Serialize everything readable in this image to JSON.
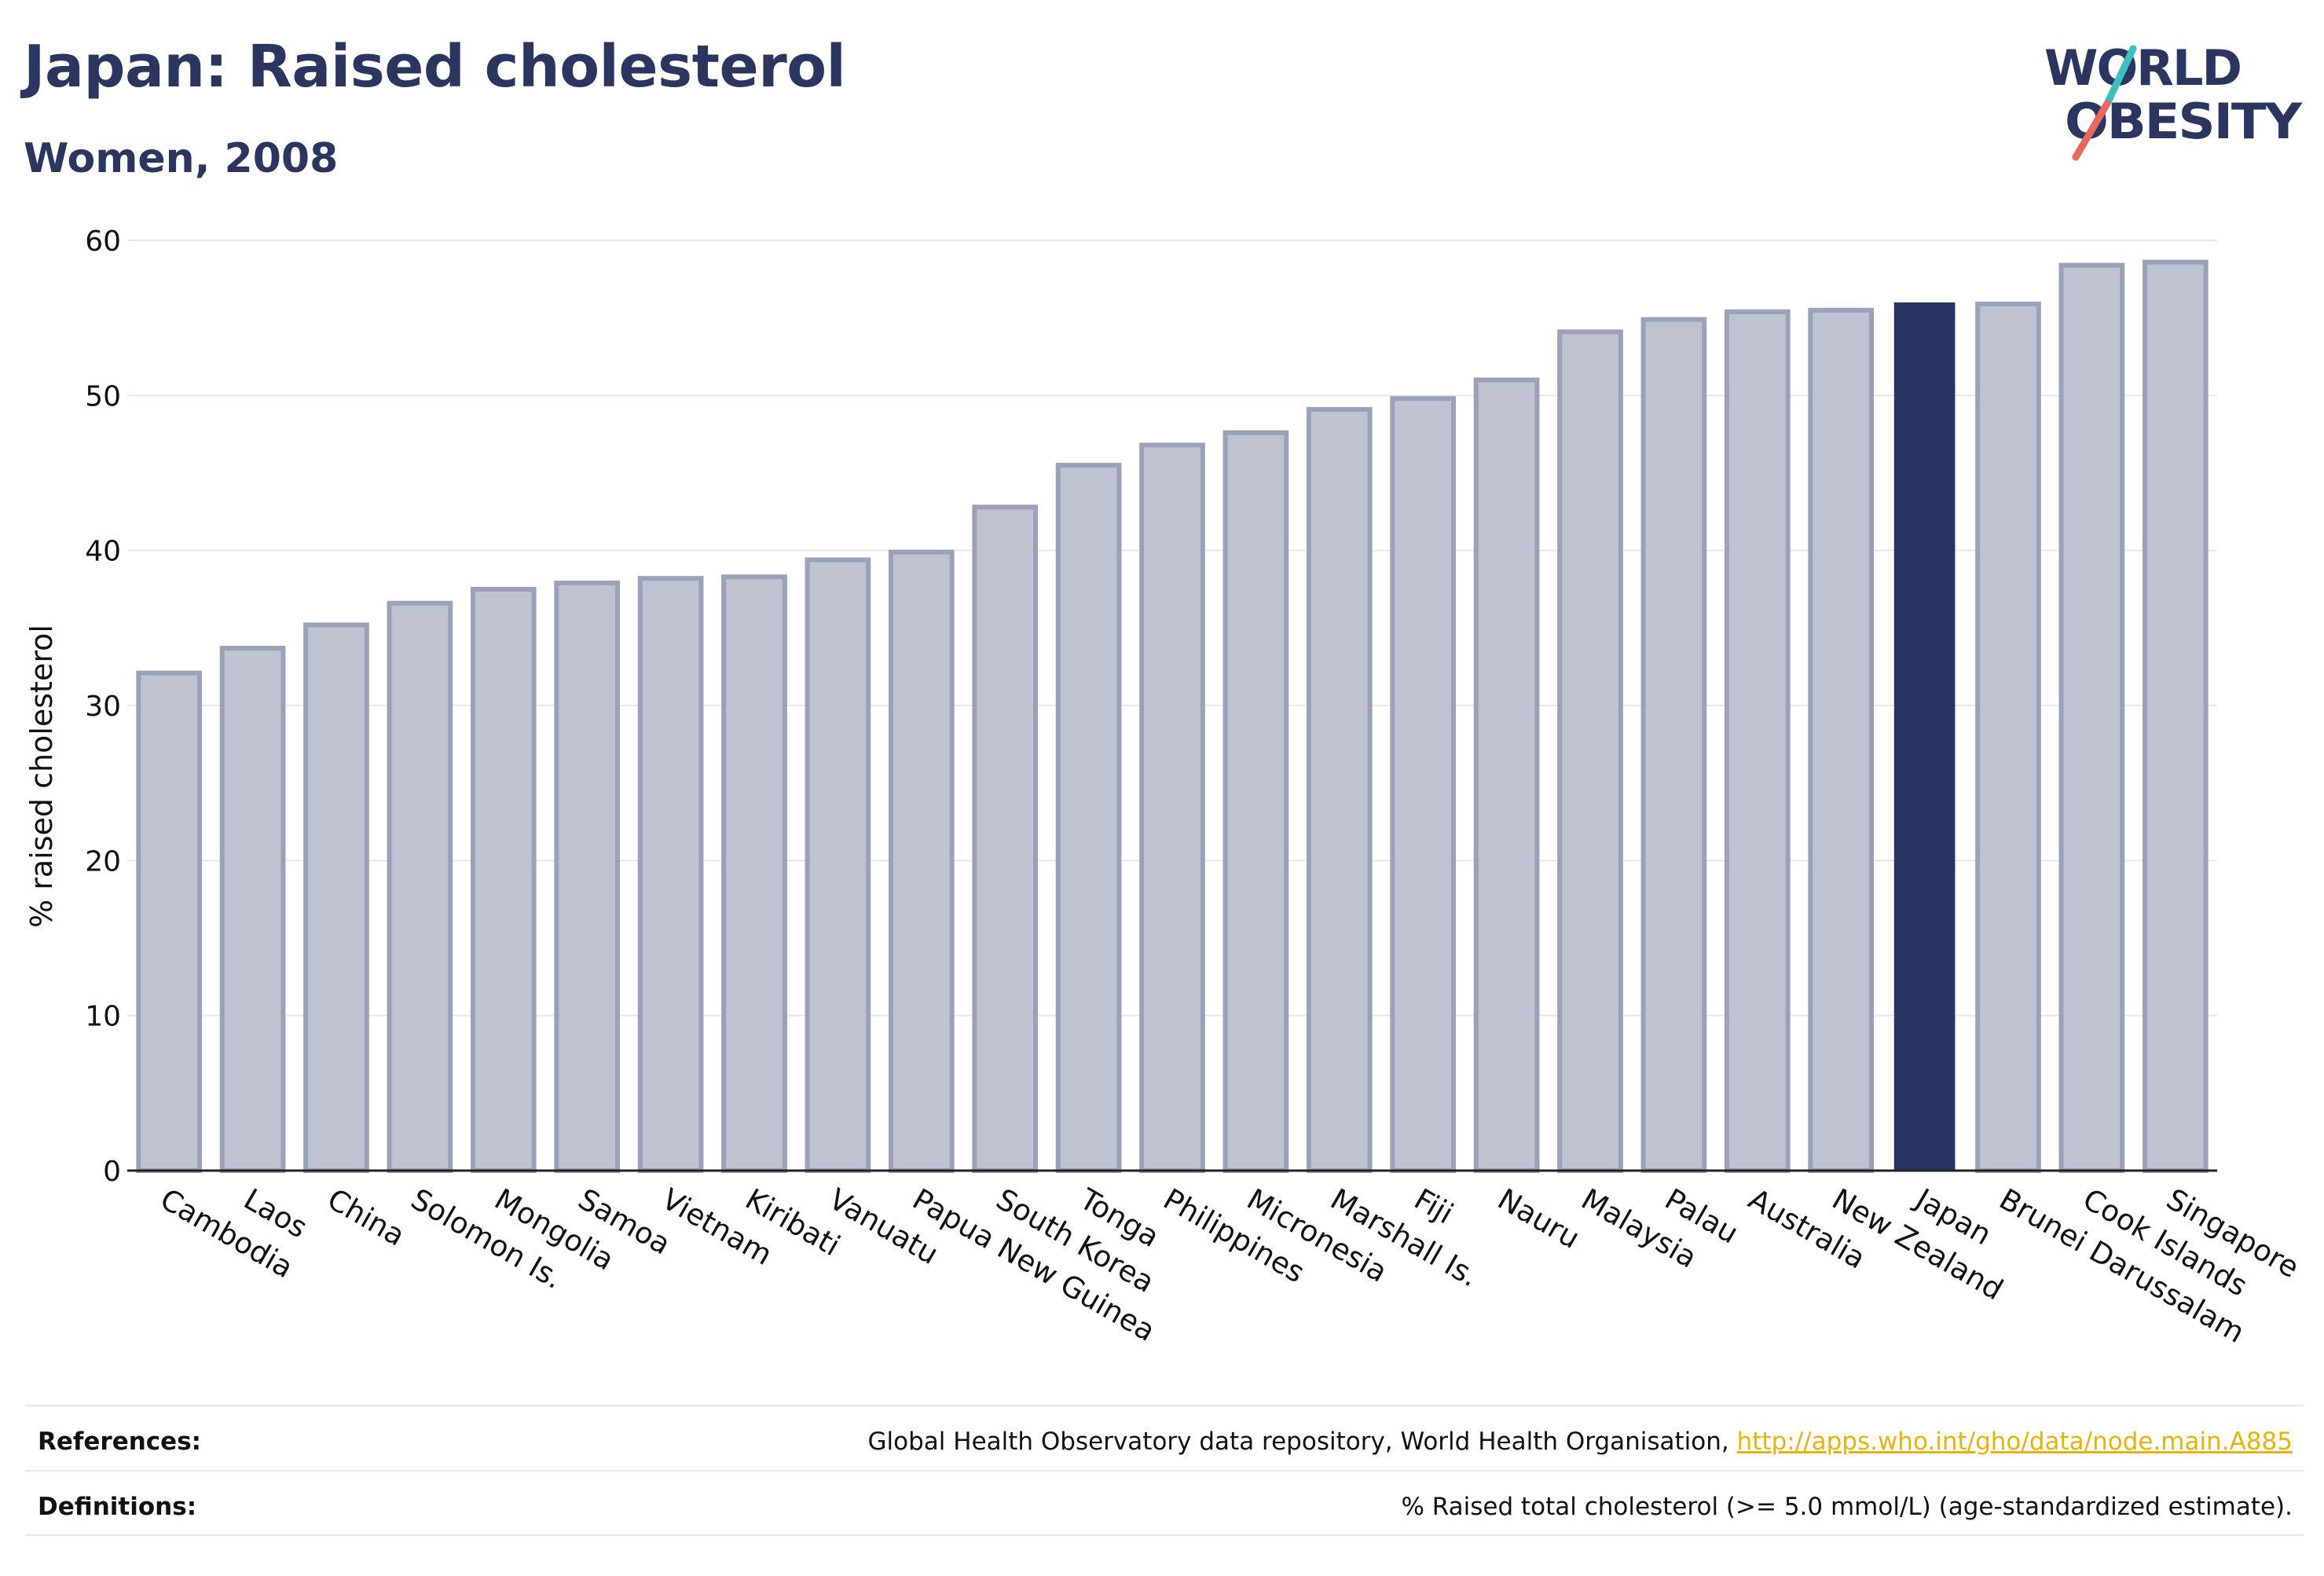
{
  "header": {
    "title": "Japan: Raised cholesterol",
    "subtitle": "Women, 2008"
  },
  "logo": {
    "line1": "WORLD",
    "line2": "OBESITY",
    "colors": {
      "text": "#2a3560",
      "slash_teal": "#3cbfbf",
      "slash_coral": "#e8665a"
    }
  },
  "chart_data": {
    "type": "bar",
    "title": "Japan: Raised cholesterol",
    "subtitle": "Women, 2008",
    "xlabel": "",
    "ylabel": "% raised cholesterol",
    "ylim": [
      0,
      60
    ],
    "yticks": [
      0,
      10,
      20,
      30,
      40,
      50,
      60
    ],
    "grid": true,
    "highlight": "Japan",
    "colors": {
      "bar": "#bfc3d0",
      "bar_edge": "#9aa1b8",
      "highlight": "#283462"
    },
    "categories": [
      "Cambodia",
      "Laos",
      "China",
      "Solomon Is.",
      "Mongolia",
      "Samoa",
      "Vietnam",
      "Kiribati",
      "Vanuatu",
      "Papua New Guinea",
      "South Korea",
      "Tonga",
      "Philippines",
      "Micronesia",
      "Marshall Is.",
      "Fiji",
      "Nauru",
      "Malaysia",
      "Palau",
      "Australia",
      "New Zealand",
      "Japan",
      "Brunei Darussalam",
      "Cook Islands",
      "Singapore"
    ],
    "values": [
      32.1,
      33.7,
      35.2,
      36.6,
      37.5,
      37.9,
      38.2,
      38.3,
      39.4,
      39.9,
      42.8,
      45.5,
      46.8,
      47.6,
      49.1,
      49.8,
      51.0,
      54.1,
      54.9,
      55.4,
      55.5,
      56.0,
      55.9,
      58.4,
      58.6
    ]
  },
  "footer": {
    "references_label": "References:",
    "references_text": "Global Health Observatory data repository, World Health Organisation, ",
    "references_link": "http://apps.who.int/gho/data/node.main.A885",
    "definitions_label": "Definitions:",
    "definitions_text": "% Raised total cholesterol (>= 5.0 mmol/L) (age-standardized estimate)."
  }
}
